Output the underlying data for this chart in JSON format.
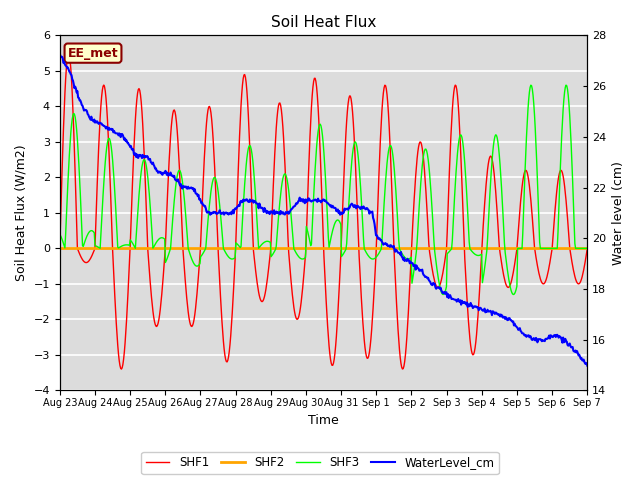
{
  "title": "Soil Heat Flux",
  "ylabel_left": "Soil Heat Flux (W/m2)",
  "ylabel_right": "Water level (cm)",
  "xlabel": "Time",
  "ylim_left": [
    -4.0,
    6.0
  ],
  "ylim_right": [
    14,
    28
  ],
  "bg_color": "#dcdcdc",
  "grid_color": "white",
  "shf1_color": "red",
  "shf2_color": "orange",
  "shf3_color": "lime",
  "water_color": "blue",
  "annotation_text": "EE_met",
  "annotation_bg": "#ffffcc",
  "annotation_border": "#8B0000",
  "legend_entries": [
    "SHF1",
    "SHF2",
    "SHF3",
    "WaterLevel_cm"
  ],
  "tick_labels": [
    "Aug 23",
    "Aug 24",
    "Aug 25",
    "Aug 26",
    "Aug 27",
    "Aug 28",
    "Aug 29",
    "Aug 30",
    "Aug 31",
    "Sep 1",
    "Sep 2",
    "Sep 3",
    "Sep 4",
    "Sep 5",
    "Sep 6",
    "Sep 7"
  ],
  "yticks_left": [
    -4,
    -3,
    -2,
    -1,
    0,
    1,
    2,
    3,
    4,
    5,
    6
  ],
  "yticks_right": [
    14,
    16,
    18,
    20,
    22,
    24,
    26,
    28
  ]
}
